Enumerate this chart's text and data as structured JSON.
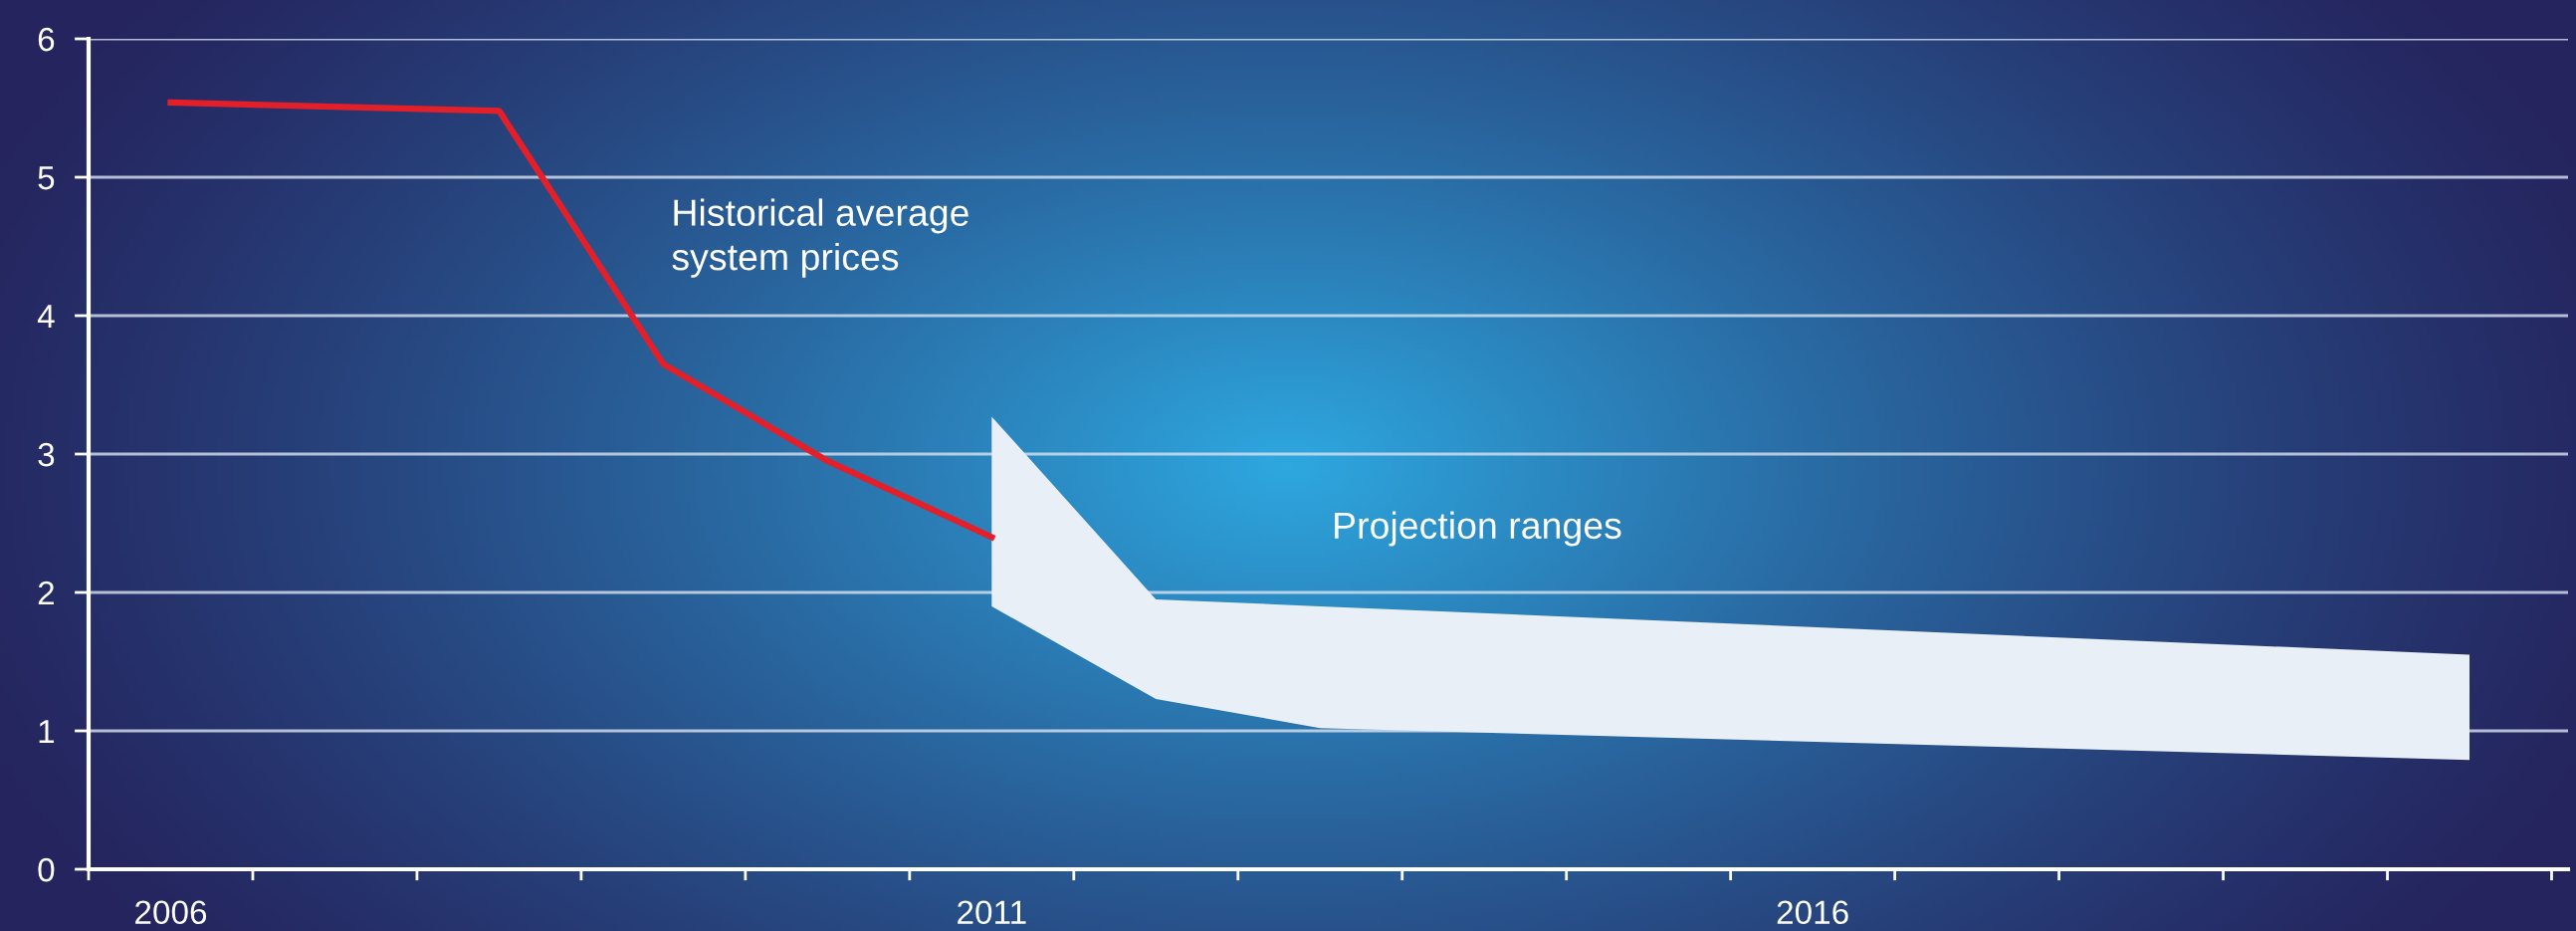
{
  "chart_data": {
    "type": "line",
    "series": [
      {
        "name": "Historical average system prices",
        "color": "#e3202a",
        "x": [
          2006,
          2008,
          2009,
          2010,
          2011
        ],
        "values": [
          5.54,
          5.48,
          3.65,
          2.95,
          2.4
        ]
      },
      {
        "type": "area",
        "name": "Projection ranges",
        "color": "#e9eff6",
        "x": [
          2011,
          2012,
          2013,
          2020
        ],
        "values": [
          null,
          null,
          null,
          null
        ],
        "lower": [
          1.9,
          1.23,
          1.02,
          0.79
        ],
        "upper": [
          3.27,
          1.95,
          1.9,
          1.55
        ]
      }
    ],
    "xlim": [
      2005.5,
      2020.6
    ],
    "xticks": [
      {
        "value": 2005.5,
        "label": null
      },
      {
        "value": 2006,
        "label": "2006"
      },
      {
        "value": 2006.5,
        "label": null
      },
      {
        "value": 2007.5,
        "label": null
      },
      {
        "value": 2008.5,
        "label": null
      },
      {
        "value": 2009.5,
        "label": null
      },
      {
        "value": 2010.5,
        "label": null
      },
      {
        "value": 2011,
        "label": "2011"
      },
      {
        "value": 2011.5,
        "label": null
      },
      {
        "value": 2012.5,
        "label": null
      },
      {
        "value": 2013.5,
        "label": null
      },
      {
        "value": 2014.5,
        "label": null
      },
      {
        "value": 2015.5,
        "label": null
      },
      {
        "value": 2016,
        "label": "2016"
      },
      {
        "value": 2016.5,
        "label": null
      },
      {
        "value": 2017.5,
        "label": null
      },
      {
        "value": 2018.5,
        "label": null
      },
      {
        "value": 2019.5,
        "label": null
      },
      {
        "value": 2020.5,
        "label": null
      }
    ],
    "ylim": [
      0,
      6
    ],
    "yticks": [
      0,
      1,
      2,
      3,
      4,
      5,
      6
    ],
    "grid": "y",
    "legend": false
  }
}
